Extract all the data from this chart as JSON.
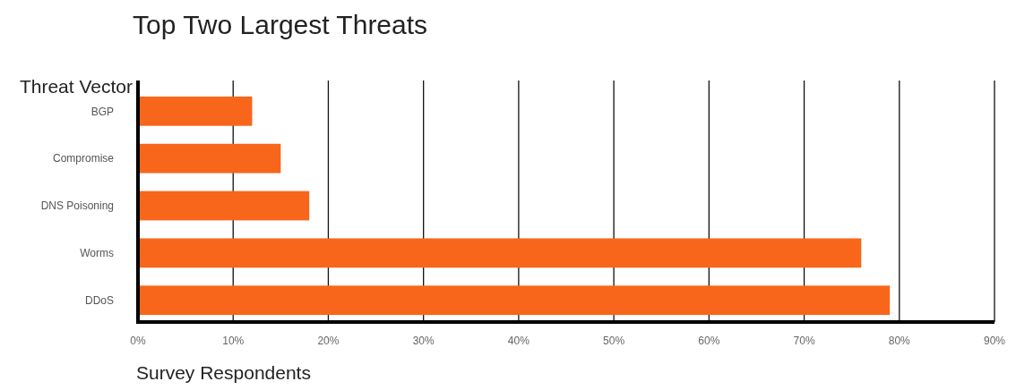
{
  "chart_data": {
    "type": "bar",
    "orientation": "horizontal",
    "title": "Top Two Largest Threats",
    "ylabel": "Threat Vector",
    "xlabel": "Survey Respondents",
    "categories": [
      "BGP",
      "Compromise",
      "DNS Poisoning",
      "Worms",
      "DDoS"
    ],
    "values": [
      12,
      15,
      18,
      76,
      79
    ],
    "color": "#f7661b",
    "xlim": [
      0,
      90
    ],
    "xticks": [
      {
        "value": 0,
        "label": "0%"
      },
      {
        "value": 10,
        "label": "10%"
      },
      {
        "value": 20,
        "label": "20%"
      },
      {
        "value": 30,
        "label": "30%"
      },
      {
        "value": 40,
        "label": "40%"
      },
      {
        "value": 50,
        "label": "50%"
      },
      {
        "value": 60,
        "label": "60%"
      },
      {
        "value": 70,
        "label": "70%"
      },
      {
        "value": 80,
        "label": "80%"
      },
      {
        "value": 90,
        "label": "90%"
      }
    ],
    "grid": "x"
  }
}
